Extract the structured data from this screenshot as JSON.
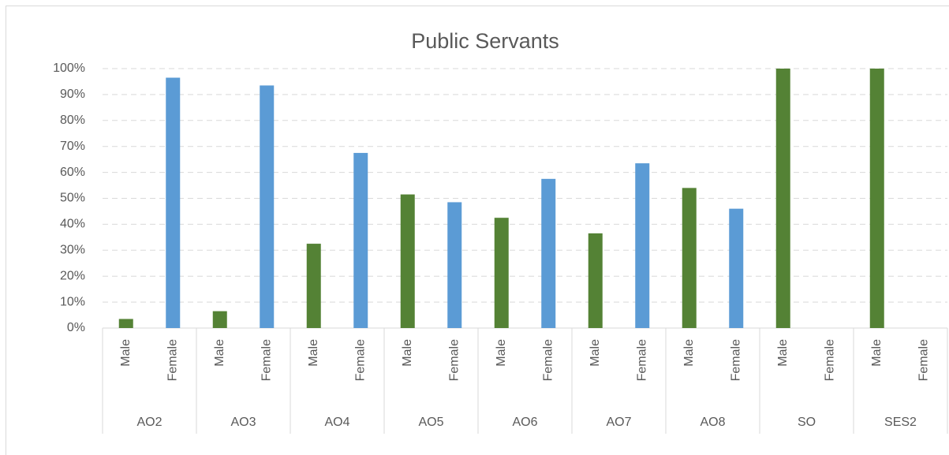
{
  "chart_data": {
    "type": "bar",
    "title": "Public Servants",
    "categories": [
      "AO2",
      "AO3",
      "AO4",
      "AO5",
      "AO6",
      "AO7",
      "AO8",
      "SO",
      "SES2"
    ],
    "series": [
      {
        "name": "Male",
        "color": "#548235",
        "values": [
          3.5,
          6.5,
          32.5,
          51.5,
          42.5,
          36.5,
          54,
          100,
          100
        ]
      },
      {
        "name": "Female",
        "color": "#5b9bd5",
        "values": [
          96.5,
          93.5,
          67.5,
          48.5,
          57.5,
          63.5,
          46,
          0,
          0
        ]
      }
    ],
    "ylim": [
      0,
      100
    ],
    "yticks": [
      {
        "value": 0,
        "label": "0%"
      },
      {
        "value": 10,
        "label": "10%"
      },
      {
        "value": 20,
        "label": "20%"
      },
      {
        "value": 30,
        "label": "30%"
      },
      {
        "value": 40,
        "label": "40%"
      },
      {
        "value": 50,
        "label": "50%"
      },
      {
        "value": 60,
        "label": "60%"
      },
      {
        "value": 70,
        "label": "70%"
      },
      {
        "value": 80,
        "label": "80%"
      },
      {
        "value": 90,
        "label": "90%"
      },
      {
        "value": 100,
        "label": "100%"
      }
    ],
    "grid": true
  }
}
